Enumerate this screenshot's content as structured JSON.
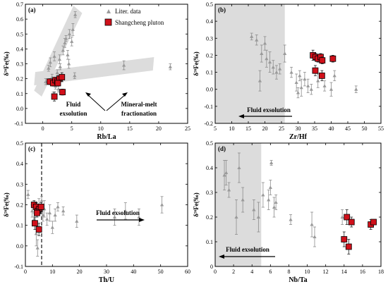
{
  "legend": {
    "liter_label": "Liter. data",
    "shang_label": "Shangcheng pluton"
  },
  "colors": {
    "liter": "#9a9a9a",
    "shang_fill": "#d0101a",
    "shang_stroke": "#000000",
    "shade": "#dcdcdc"
  },
  "ylabel": "δ⁵⁶Fe(‰)",
  "chart_data": [
    {
      "id": "a",
      "panel_label": "(a)",
      "type": "scatter",
      "xlabel": "Rb/La",
      "xlim": [
        -3,
        25
      ],
      "ylim": [
        -0.1,
        0.7
      ],
      "xticks": [
        0,
        5,
        10,
        15,
        20,
        25
      ],
      "yticks": [
        -0.1,
        0.0,
        0.1,
        0.2,
        0.3,
        0.4,
        0.5,
        0.6,
        0.7
      ],
      "ytick_labels": [
        "-0.1",
        "0.0",
        "0.1",
        "0.2",
        "0.3",
        "0.4",
        "0.5",
        "0.6",
        "0.7"
      ],
      "annotations": [
        "Fluid",
        "exsolution",
        "Mineral-melt",
        "fractionation"
      ],
      "series": [
        {
          "name": "Liter. data",
          "points": [
            [
              0.5,
              0.18,
              0.02
            ],
            [
              1.0,
              0.27,
              0.02
            ],
            [
              1.3,
              0.31,
              0.03
            ],
            [
              1.6,
              0.21,
              0.02
            ],
            [
              2.0,
              0.35,
              0.03
            ],
            [
              2.2,
              0.15,
              0.02
            ],
            [
              2.5,
              0.24,
              0.02
            ],
            [
              2.9,
              0.33,
              0.03
            ],
            [
              3.0,
              0.28,
              0.02
            ],
            [
              3.3,
              0.2,
              0.02
            ],
            [
              3.5,
              0.39,
              0.03
            ],
            [
              3.8,
              0.44,
              0.03
            ],
            [
              4.0,
              0.47,
              0.02
            ],
            [
              4.3,
              0.36,
              0.03
            ],
            [
              4.6,
              0.5,
              0.03
            ],
            [
              5.0,
              0.45,
              0.03
            ],
            [
              5.2,
              0.53,
              0.04
            ],
            [
              5.6,
              0.63,
              0.02
            ],
            [
              4.5,
              0.3,
              0.03
            ],
            [
              2.7,
              0.13,
              0.02
            ],
            [
              1.8,
              0.09,
              0.02
            ],
            [
              14.0,
              0.29,
              0.03
            ],
            [
              22.0,
              0.28,
              0.02
            ],
            [
              5.5,
              0.22,
              0.02
            ]
          ]
        },
        {
          "name": "Shangcheng pluton",
          "points": [
            [
              1.2,
              0.18,
              0.02
            ],
            [
              1.8,
              0.17,
              0.02
            ],
            [
              2.2,
              0.19,
              0.02
            ],
            [
              2.5,
              0.18,
              0.02
            ],
            [
              2.9,
              0.2,
              0.02
            ],
            [
              3.3,
              0.21,
              0.03
            ],
            [
              2.0,
              0.08,
              0.03
            ],
            [
              3.4,
              0.11,
              0.02
            ],
            [
              2.6,
              0.17,
              0.02
            ]
          ]
        }
      ]
    },
    {
      "id": "b",
      "panel_label": "(b)",
      "type": "scatter",
      "xlabel": "Zr/Hf",
      "xlim": [
        5,
        55
      ],
      "ylim": [
        -0.2,
        0.5
      ],
      "xticks": [
        5,
        10,
        15,
        20,
        25,
        30,
        35,
        40,
        45,
        50,
        55
      ],
      "yticks": [
        -0.2,
        -0.1,
        0.0,
        0.1,
        0.2,
        0.3,
        0.4,
        0.5
      ],
      "ytick_labels": [
        "-0.2",
        "-0.1",
        "0.0",
        "0.1",
        "0.2",
        "0.3",
        "0.4",
        "0.5"
      ],
      "shaded_xrange": [
        5,
        26
      ],
      "annotations": [
        "Fluid exsolution"
      ],
      "series": [
        {
          "name": "Liter. data",
          "points": [
            [
              16.0,
              0.31,
              0.02
            ],
            [
              17.5,
              0.29,
              0.03
            ],
            [
              18.5,
              0.05,
              0.06
            ],
            [
              19.0,
              0.21,
              0.05
            ],
            [
              20.0,
              0.27,
              0.04
            ],
            [
              20.5,
              0.18,
              0.05
            ],
            [
              21.5,
              0.16,
              0.06
            ],
            [
              22.5,
              0.13,
              0.04
            ],
            [
              23.5,
              0.1,
              0.04
            ],
            [
              24.5,
              0.12,
              0.03
            ],
            [
              26.0,
              0.21,
              0.05
            ],
            [
              28.0,
              0.1,
              0.03
            ],
            [
              29.5,
              0.04,
              0.05
            ],
            [
              30.5,
              0.08,
              0.03
            ],
            [
              31.0,
              0.01,
              0.05
            ],
            [
              32.0,
              0.06,
              0.04
            ],
            [
              33.0,
              0.02,
              0.04
            ],
            [
              34.0,
              0.0,
              0.03
            ],
            [
              36.0,
              0.05,
              0.04
            ],
            [
              38.0,
              0.02,
              0.03
            ],
            [
              40.0,
              0.0,
              0.04
            ],
            [
              41.0,
              0.08,
              0.03
            ],
            [
              47.5,
              0.0,
              0.02
            ],
            [
              30.0,
              -0.02,
              0.03
            ]
          ]
        },
        {
          "name": "Shangcheng pluton",
          "points": [
            [
              34.5,
              0.2,
              0.03
            ],
            [
              35.3,
              0.19,
              0.02
            ],
            [
              36.0,
              0.18,
              0.02
            ],
            [
              36.8,
              0.19,
              0.02
            ],
            [
              37.3,
              0.17,
              0.02
            ],
            [
              40.5,
              0.18,
              0.02
            ],
            [
              35.2,
              0.11,
              0.03
            ],
            [
              37.2,
              0.08,
              0.03
            ]
          ]
        }
      ]
    },
    {
      "id": "c",
      "panel_label": "(c)",
      "type": "scatter",
      "xlabel": "Th/U",
      "xlim": [
        0,
        60
      ],
      "ylim": [
        -0.1,
        0.5
      ],
      "xticks": [
        0,
        10,
        20,
        30,
        40,
        50,
        60
      ],
      "yticks": [
        -0.1,
        0.0,
        0.1,
        0.2,
        0.3,
        0.4,
        0.5
      ],
      "ytick_labels": [
        "-0.1",
        "0.0",
        "0.1",
        "0.2",
        "0.3",
        "0.4",
        "0.5"
      ],
      "vline_x": 6,
      "annotations": [
        "Fluid exsolution"
      ],
      "series": [
        {
          "name": "Liter. data",
          "points": [
            [
              1.0,
              0.25,
              0.02
            ],
            [
              2.5,
              0.17,
              0.03
            ],
            [
              3.2,
              0.13,
              0.03
            ],
            [
              4.0,
              0.06,
              0.06
            ],
            [
              4.5,
              -0.01,
              0.04
            ],
            [
              5.0,
              0.2,
              0.03
            ],
            [
              6.0,
              0.22,
              0.02
            ],
            [
              7.0,
              0.18,
              0.04
            ],
            [
              8.0,
              0.13,
              0.03
            ],
            [
              9.0,
              0.16,
              0.04
            ],
            [
              11.0,
              0.15,
              0.03
            ],
            [
              12.0,
              0.19,
              0.02
            ],
            [
              14.0,
              0.17,
              0.02
            ],
            [
              19.0,
              0.12,
              0.03
            ],
            [
              33.0,
              0.14,
              0.04
            ],
            [
              37.0,
              0.17,
              0.04
            ],
            [
              42.0,
              0.14,
              0.04
            ],
            [
              50.5,
              0.2,
              0.04
            ],
            [
              6.5,
              0.15,
              0.03
            ],
            [
              10.0,
              0.09,
              0.03
            ]
          ]
        },
        {
          "name": "Shangcheng pluton",
          "points": [
            [
              3.2,
              0.2,
              0.02
            ],
            [
              4.0,
              0.19,
              0.02
            ],
            [
              4.6,
              0.17,
              0.02
            ],
            [
              5.2,
              0.18,
              0.02
            ],
            [
              5.8,
              0.19,
              0.02
            ],
            [
              3.5,
              0.11,
              0.03
            ],
            [
              5.0,
              0.08,
              0.03
            ],
            [
              4.3,
              0.16,
              0.02
            ]
          ]
        }
      ]
    },
    {
      "id": "d",
      "panel_label": "(d)",
      "type": "scatter",
      "xlabel": "Nb/Ta",
      "xlim": [
        0,
        18
      ],
      "ylim": [
        0,
        0.5
      ],
      "xticks": [
        0,
        2,
        4,
        6,
        8,
        10,
        12,
        14,
        16,
        18
      ],
      "yticks": [
        0,
        0.1,
        0.2,
        0.3,
        0.4,
        0.5
      ],
      "ytick_labels": [
        "0",
        "0.1",
        "0.2",
        "0.3",
        "0.4",
        "0.5"
      ],
      "shaded_xrange": [
        0,
        5
      ],
      "annotations": [
        "Fluid exsolution"
      ],
      "series": [
        {
          "name": "Liter. data",
          "points": [
            [
              1.0,
              0.37,
              0.06
            ],
            [
              1.2,
              0.38,
              0.05
            ],
            [
              1.5,
              0.31,
              0.03
            ],
            [
              2.3,
              0.2,
              0.07
            ],
            [
              2.6,
              0.4,
              0.06
            ],
            [
              3.0,
              0.27,
              0.05
            ],
            [
              4.2,
              0.23,
              0.04
            ],
            [
              4.7,
              0.2,
              0.06
            ],
            [
              5.2,
              0.29,
              0.05
            ],
            [
              5.8,
              0.27,
              0.04
            ],
            [
              6.1,
              0.42,
              0.01
            ],
            [
              6.4,
              0.24,
              0.04
            ],
            [
              6.6,
              0.26,
              0.03
            ],
            [
              8.2,
              0.19,
              0.02
            ],
            [
              10.5,
              0.17,
              0.05
            ],
            [
              10.8,
              0.12,
              0.04
            ],
            [
              13.8,
              0.2,
              0.03
            ],
            [
              6.0,
              0.32,
              0.03
            ]
          ]
        },
        {
          "name": "Shangcheng pluton",
          "points": [
            [
              14.3,
              0.2,
              0.03
            ],
            [
              14.8,
              0.18,
              0.02
            ],
            [
              16.9,
              0.17,
              0.02
            ],
            [
              17.2,
              0.18,
              0.01
            ],
            [
              14.0,
              0.11,
              0.03
            ],
            [
              14.5,
              0.08,
              0.03
            ]
          ]
        }
      ]
    }
  ]
}
